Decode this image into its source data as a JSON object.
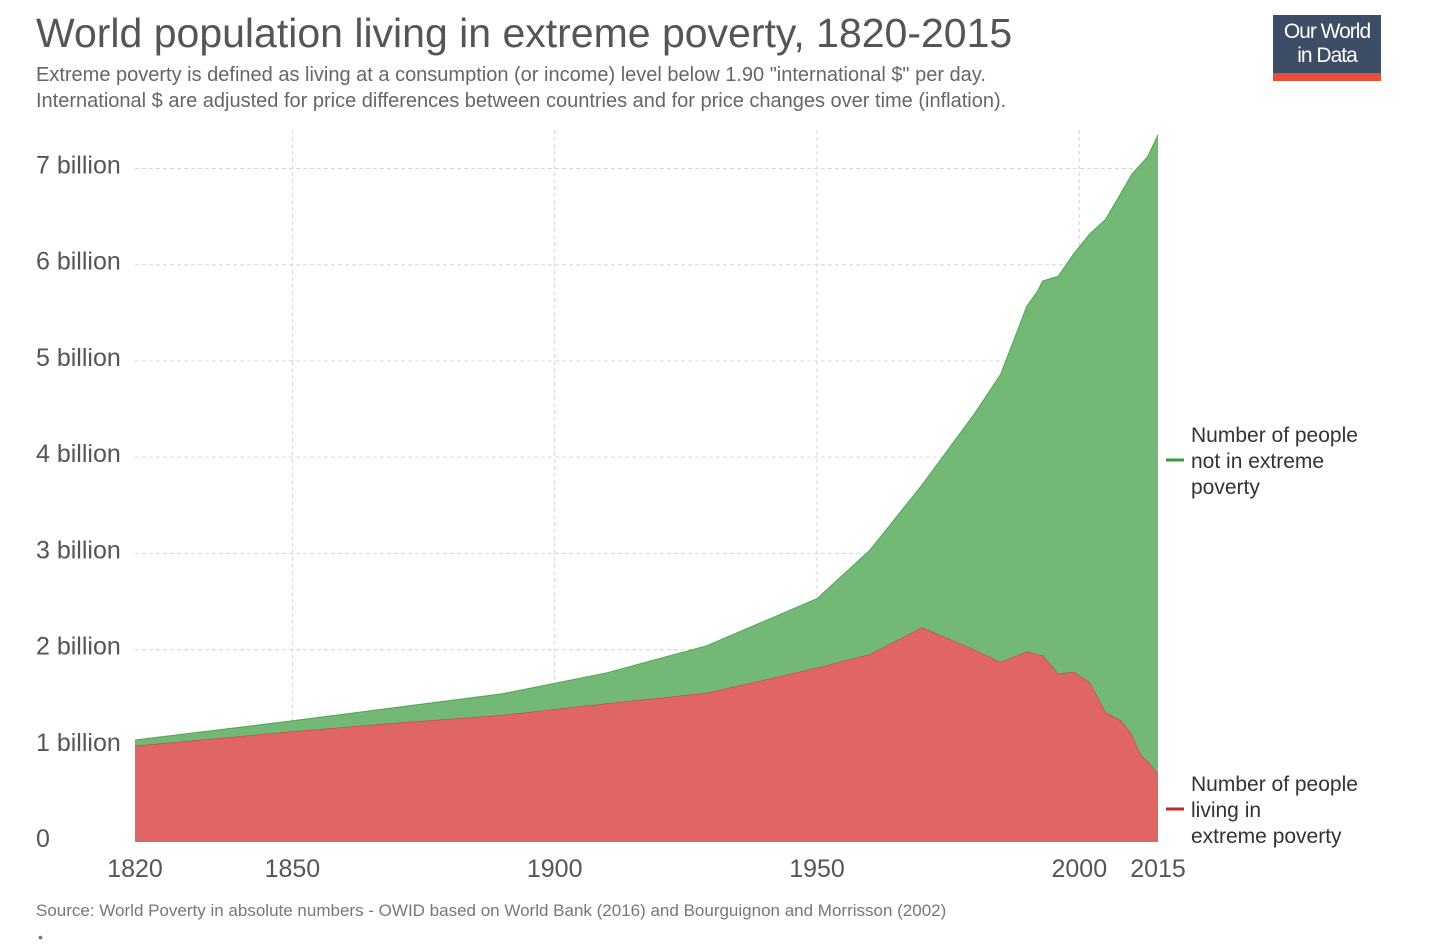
{
  "header": {
    "title": "World population living in extreme poverty, 1820-2015",
    "subtitle_line1": "Extreme poverty is defined as living at a consumption (or income) level below 1.90 \"international $\" per day.",
    "subtitle_line2": "International $ are adjusted for price differences between countries and for price changes over time (inflation)."
  },
  "logo": {
    "line1": "Our World",
    "line2": "in Data",
    "bg_color": "#3d4d66",
    "accent_color": "#e94e39"
  },
  "footer": {
    "source": "Source: World Poverty in absolute numbers - OWID based on World Bank (2016) and Bourguignon and Morrisson (2002)",
    "bullet": "•"
  },
  "chart_data": {
    "type": "area",
    "stacked": true,
    "title": "World population living in extreme poverty, 1820-2015",
    "xlabel": "",
    "ylabel": "",
    "xlim": [
      1820,
      2015
    ],
    "ylim": [
      0,
      7400000000
    ],
    "grid": true,
    "legend_position": "right",
    "x_ticks": [
      1820,
      1850,
      1900,
      1950,
      2000,
      2015
    ],
    "y_ticks": [
      {
        "value": 0,
        "label": "0"
      },
      {
        "value": 1000000000,
        "label": "1 billion"
      },
      {
        "value": 2000000000,
        "label": "2 billion"
      },
      {
        "value": 3000000000,
        "label": "3 billion"
      },
      {
        "value": 4000000000,
        "label": "4 billion"
      },
      {
        "value": 5000000000,
        "label": "5 billion"
      },
      {
        "value": 6000000000,
        "label": "6 billion"
      },
      {
        "value": 7000000000,
        "label": "7 billion"
      }
    ],
    "x": [
      1820,
      1850,
      1870,
      1890,
      1910,
      1929,
      1950,
      1960,
      1970,
      1980,
      1985,
      1990,
      1992,
      1993,
      1996,
      1999,
      2002,
      2005,
      2008,
      2010,
      2011,
      2012,
      2013,
      2015
    ],
    "series": [
      {
        "name": "Number of people living in extreme poverty",
        "color": "#e06666",
        "legend_color": "#c12929",
        "values": [
          1000000000,
          1150000000,
          1240000000,
          1320000000,
          1440000000,
          1550000000,
          1810000000,
          1950000000,
          2230000000,
          2000000000,
          1870000000,
          1980000000,
          1950000000,
          1940000000,
          1750000000,
          1770000000,
          1660000000,
          1350000000,
          1260000000,
          1120000000,
          990000000,
          890000000,
          840000000,
          710000000
        ]
      },
      {
        "name": "Number of people not in extreme poverty",
        "color": "#74b875",
        "legend_color": "#3a9a3e",
        "values": [
          60000000,
          110000000,
          160000000,
          220000000,
          320000000,
          490000000,
          720000000,
          1080000000,
          1480000000,
          2450000000,
          2990000000,
          3590000000,
          3770000000,
          3890000000,
          4130000000,
          4350000000,
          4660000000,
          5120000000,
          5490000000,
          5820000000,
          6010000000,
          6170000000,
          6280000000,
          6640000000
        ]
      }
    ]
  }
}
